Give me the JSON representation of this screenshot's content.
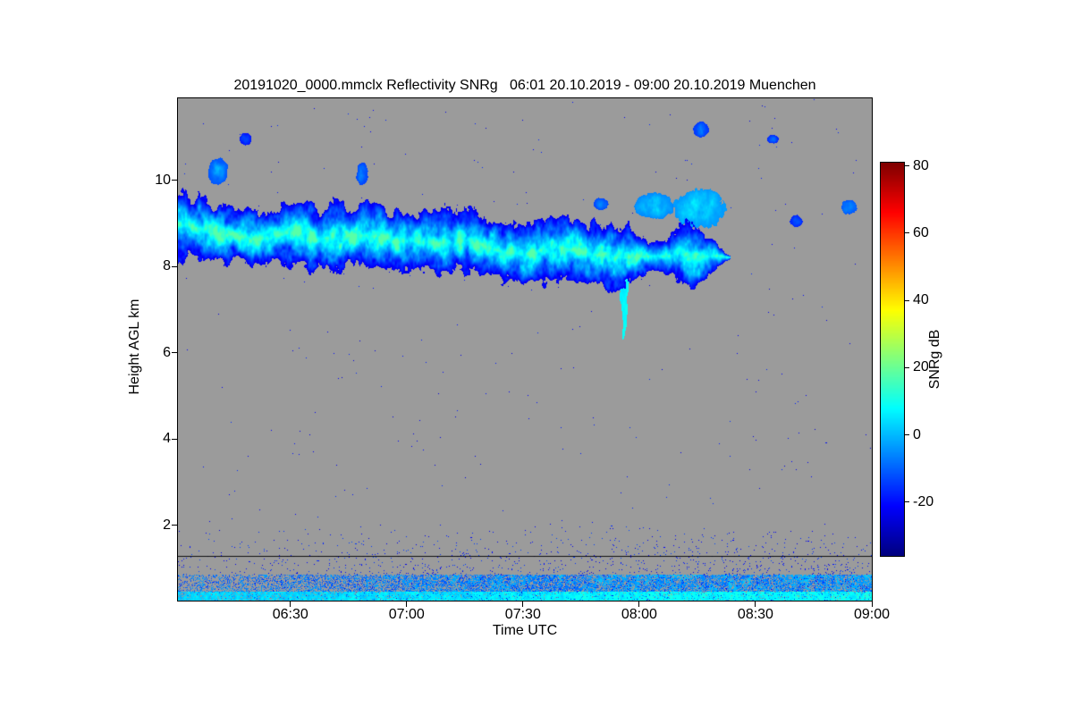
{
  "chart_data": {
    "type": "heatmap",
    "title": "20191020_0000.mmclx Reflectivity SNRg   06:01 20.10.2019 - 09:00 20.10.2019 Muenchen",
    "xlabel": "Time UTC",
    "ylabel": "Height AGL km",
    "colorbar_label": "SNRg dB",
    "colormap": "jet",
    "no_signal_color": "#9b9b9b",
    "x_tick_labels": [
      "06:30",
      "07:00",
      "07:30",
      "08:00",
      "08:30",
      "09:00"
    ],
    "x_tick_minutes": [
      29,
      59,
      89,
      119,
      149,
      179
    ],
    "x_range_minutes": [
      0,
      179
    ],
    "time_start_utc": "06:01 20.10.2019",
    "time_end_utc": "09:00 20.10.2019",
    "station": "Muenchen",
    "y_ticks_km": [
      2,
      4,
      6,
      8,
      10
    ],
    "ylim_km": [
      0.25,
      11.9
    ],
    "colorbar_ticks_db": [
      -20,
      0,
      20,
      40,
      60,
      80
    ],
    "colorbar_range_db": [
      -36,
      81
    ],
    "features": {
      "cloud_band": {
        "description": "Cirrus cloud layer descending from ~8.9 km at 06:01 to ~8.0 km, dissipating around 08:20; SNR core ~+5..+15 dB (cyan), edges ~-25 dB (dark blue)",
        "t_start_min": 0,
        "t_end_min": 140,
        "center_km_start": 8.9,
        "center_km_end": 8.05,
        "halfwidth_km": 0.55,
        "snr_db_core": 10,
        "snr_db_edge": -24
      },
      "fall_streak": {
        "description": "Narrow virga streak near 07:56 reaching down to ~6.5 km",
        "t_min": 115,
        "bottom_km": 6.5
      },
      "upper_patches": [
        {
          "t0": 8,
          "t1": 13,
          "h0": 9.9,
          "h1": 10.5,
          "snr_db": -12
        },
        {
          "t0": 16,
          "t1": 19,
          "h0": 10.8,
          "h1": 11.1,
          "snr_db": -20
        },
        {
          "t0": 46,
          "t1": 49,
          "h0": 9.9,
          "h1": 10.4,
          "snr_db": -14
        },
        {
          "t0": 107,
          "t1": 111,
          "h0": 9.3,
          "h1": 9.6,
          "snr_db": -14
        },
        {
          "t0": 118,
          "t1": 128,
          "h0": 9.1,
          "h1": 9.7,
          "snr_db": -6
        },
        {
          "t0": 128,
          "t1": 141,
          "h0": 8.9,
          "h1": 9.8,
          "snr_db": -4
        },
        {
          "t0": 133,
          "t1": 137,
          "h0": 11.0,
          "h1": 11.35,
          "snr_db": -16
        },
        {
          "t0": 152,
          "t1": 155,
          "h0": 10.85,
          "h1": 11.05,
          "snr_db": -18
        },
        {
          "t0": 158,
          "t1": 161,
          "h0": 8.9,
          "h1": 9.2,
          "snr_db": -18
        },
        {
          "t0": 171,
          "t1": 175,
          "h0": 9.2,
          "h1": 9.55,
          "snr_db": -12
        }
      ],
      "boundary_layer": {
        "description": "Speckled low-SNR echoes below ~2.2 km densifying with time; dense mix below ~0.85 km; bright cyan surface echo band below ~0.45 km",
        "top_km": 2.2,
        "surface_band_km": 0.45
      },
      "horizontal_line_km": 1.28
    }
  }
}
